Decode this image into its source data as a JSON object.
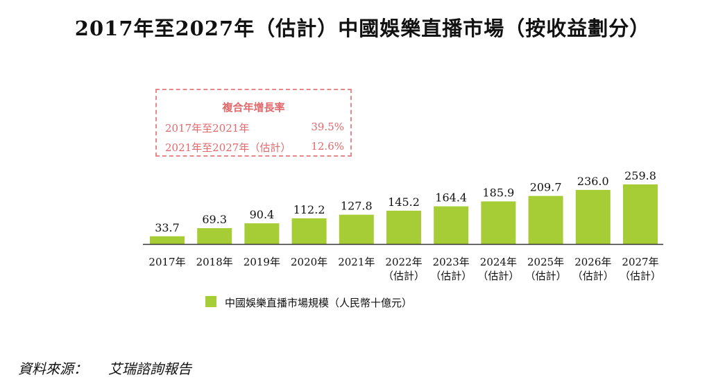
{
  "chart_data": {
    "type": "bar",
    "title": "2017年至2027年（估計）中國娛樂直播市場（按收益劃分）",
    "categories": [
      "2017年",
      "2018年",
      "2019年",
      "2020年",
      "2021年",
      "2022年（估計）",
      "2023年（估計）",
      "2024年（估計）",
      "2025年（估計）",
      "2026年（估計）",
      "2027年（估計）"
    ],
    "category_lines": [
      [
        "2017年"
      ],
      [
        "2018年"
      ],
      [
        "2019年"
      ],
      [
        "2020年"
      ],
      [
        "2021年"
      ],
      [
        "2022年",
        "（估計）"
      ],
      [
        "2023年",
        "（估計）"
      ],
      [
        "2024年",
        "（估計）"
      ],
      [
        "2025年",
        "（估計）"
      ],
      [
        "2026年",
        "（估計）"
      ],
      [
        "2027年",
        "（估計）"
      ]
    ],
    "series": [
      {
        "name": "中國娛樂直播市場規模（人民幣十億元）",
        "values": [
          33.7,
          69.3,
          90.4,
          112.2,
          127.8,
          145.2,
          164.4,
          185.9,
          209.7,
          236.0,
          259.8
        ],
        "labels": [
          "33.7",
          "69.3",
          "90.4",
          "112.2",
          "127.8",
          "145.2",
          "164.4",
          "185.9",
          "209.7",
          "236.0",
          "259.8"
        ]
      }
    ],
    "xlabel": "",
    "ylabel": "",
    "ylim": [
      0,
      259.8
    ],
    "grid": false,
    "legend": "bottom"
  },
  "cagr": {
    "title": "複合年增長率",
    "rows": [
      {
        "period": "2017年至2021年",
        "value": "39.5%"
      },
      {
        "period": "2021年至2027年（估計）",
        "value": "12.6%"
      }
    ]
  },
  "source": {
    "label": "資料來源：",
    "value": "艾瑞諮詢報告"
  },
  "colors": {
    "bar": "#a6cd36",
    "axis": "#333333",
    "cagr_text": "#e2686c",
    "cagr_border": "#e8878a"
  }
}
